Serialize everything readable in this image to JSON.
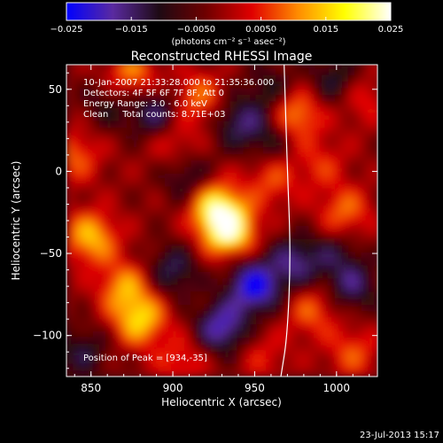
{
  "chart_data": {
    "type": "heatmap",
    "title": "Reconstructed RHESSI Image",
    "xlabel": "Heliocentric X (arcsec)",
    "ylabel": "Heliocentric Y (arcsec)",
    "xlim": [
      835,
      1025
    ],
    "ylim": [
      -125,
      65
    ],
    "x_ticks": [
      850,
      900,
      950,
      1000
    ],
    "y_ticks": [
      50,
      0,
      -50,
      -100
    ],
    "x_tick_labels": [
      "850",
      "900",
      "950",
      "1000"
    ],
    "y_tick_labels": [
      "50",
      "0",
      "−50",
      "−100"
    ],
    "colorbar": {
      "min": -0.025,
      "max": 0.025,
      "ticks": [
        -0.025,
        -0.015,
        -0.005,
        0.005,
        0.015,
        0.025
      ],
      "tick_labels": [
        "−0.025",
        "−0.015",
        "−0.0050",
        "0.0050",
        "0.015",
        "0.025"
      ],
      "unit_label": "(photons cm⁻² s⁻¹ asec⁻²)",
      "colors": [
        "#0000ff",
        "#5a2aa0",
        "#1e0a14",
        "#6e0000",
        "#e00000",
        "#ff8c00",
        "#ffff00",
        "#ffffff"
      ]
    },
    "annotations": {
      "time_range": "10-Jan-2007 21:33:28.000 to 21:35:36.000",
      "detectors": "Detectors: 4F 5F 6F 7F 8F, Att 0",
      "energy": "Energy Range: 3.0 - 6.0 keV",
      "clean": "Clean     Total counts: 8.71E+03",
      "peak": "Position of Peak = [934,-35]",
      "date_stamp": "23-Jul-2013 15:17"
    },
    "peak": {
      "x": 934,
      "y": -35
    },
    "limb_curve": [
      [
        968,
        65
      ],
      [
        970,
        0
      ],
      [
        972,
        -50
      ],
      [
        970,
        -100
      ],
      [
        966,
        -125
      ]
    ],
    "sources": [
      {
        "x": 934,
        "y": -35,
        "v": 0.025
      },
      {
        "x": 925,
        "y": -20,
        "v": 0.018
      },
      {
        "x": 915,
        "y": 45,
        "v": 0.011
      },
      {
        "x": 900,
        "y": 20,
        "v": 0.008
      },
      {
        "x": 880,
        "y": -90,
        "v": 0.017
      },
      {
        "x": 870,
        "y": -70,
        "v": 0.013
      },
      {
        "x": 850,
        "y": -40,
        "v": 0.016
      },
      {
        "x": 840,
        "y": 10,
        "v": 0.01
      },
      {
        "x": 875,
        "y": 60,
        "v": 0.012
      },
      {
        "x": 960,
        "y": -5,
        "v": 0.009
      },
      {
        "x": 975,
        "y": 35,
        "v": 0.015
      },
      {
        "x": 985,
        "y": -85,
        "v": 0.01
      },
      {
        "x": 1005,
        "y": -25,
        "v": 0.011
      },
      {
        "x": 1015,
        "y": 45,
        "v": 0.008
      },
      {
        "x": 905,
        "y": -115,
        "v": 0.008
      },
      {
        "x": 955,
        "y": -112,
        "v": 0.006
      },
      {
        "x": 990,
        "y": 5,
        "v": 0.007
      },
      {
        "x": 1010,
        "y": -110,
        "v": 0.009
      },
      {
        "x": 950,
        "y": -70,
        "v": -0.022
      },
      {
        "x": 930,
        "y": -95,
        "v": -0.018
      },
      {
        "x": 975,
        "y": -55,
        "v": -0.014
      },
      {
        "x": 900,
        "y": -60,
        "v": -0.012
      },
      {
        "x": 890,
        "y": 35,
        "v": -0.014
      },
      {
        "x": 940,
        "y": 30,
        "v": -0.012
      },
      {
        "x": 910,
        "y": -5,
        "v": -0.01
      },
      {
        "x": 845,
        "y": -110,
        "v": -0.01
      },
      {
        "x": 1000,
        "y": 55,
        "v": -0.011
      },
      {
        "x": 1010,
        "y": -70,
        "v": -0.012
      },
      {
        "x": 960,
        "y": 50,
        "v": -0.009
      },
      {
        "x": 960,
        "y": 20,
        "v": -0.008
      },
      {
        "x": 1000,
        "y": -50,
        "v": -0.008
      },
      {
        "x": 860,
        "y": 40,
        "v": -0.007
      }
    ]
  }
}
